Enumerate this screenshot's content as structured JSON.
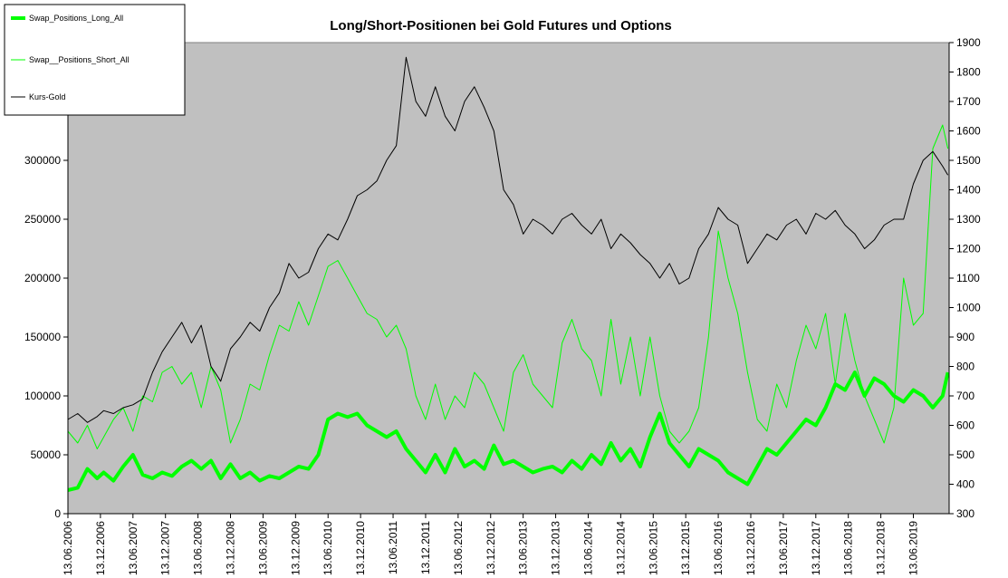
{
  "chart_data": {
    "type": "line",
    "title": "Long/Short-Positionen bei Gold Futures und Options",
    "xlabel": "",
    "ylabel": "",
    "ylabel_right": "",
    "x_tick_labels": [
      "13.06.2006",
      "13.12.2006",
      "13.06.2007",
      "13.12.2007",
      "13.06.2008",
      "13.12.2008",
      "13.06.2009",
      "13.12.2009",
      "13.06.2010",
      "13.12.2010",
      "13.06.2011",
      "13.12.2011",
      "13.06.2012",
      "13.12.2012",
      "13.06.2013",
      "13.12.2013",
      "13.06.2014",
      "13.12.2014",
      "13.06.2015",
      "13.12.2015",
      "13.06.2016",
      "13.12.2016",
      "13.06.2017",
      "13.12.2017",
      "13.06.2018",
      "13.12.2018",
      "13.06.2019"
    ],
    "xlim": [
      2006.45,
      2020.0
    ],
    "ylim_left": [
      0,
      400000
    ],
    "yticks_left": [
      0,
      50000,
      100000,
      150000,
      200000,
      250000,
      300000
    ],
    "ytick_labels_left": [
      "0",
      "50000",
      "100000",
      "150000",
      "200000",
      "250000",
      "300000"
    ],
    "ylim_right": [
      300,
      1900
    ],
    "yticks_right": [
      300,
      400,
      500,
      600,
      700,
      800,
      900,
      1000,
      1100,
      1200,
      1300,
      1400,
      1500,
      1600,
      1700,
      1800,
      1900
    ],
    "legend_position": "top-left (outside plot)",
    "background_color": "#c0c0c0",
    "grid": false,
    "series": [
      {
        "name": "Swap_Positions_Long_All",
        "axis": "left",
        "color": "#00ff00",
        "width": 4,
        "x": [
          2006.45,
          2006.6,
          2006.75,
          2006.9,
          2007.0,
          2007.15,
          2007.3,
          2007.45,
          2007.6,
          2007.75,
          2007.9,
          2008.05,
          2008.2,
          2008.35,
          2008.5,
          2008.65,
          2008.8,
          2008.95,
          2009.1,
          2009.25,
          2009.4,
          2009.55,
          2009.7,
          2009.85,
          2010.0,
          2010.15,
          2010.3,
          2010.45,
          2010.6,
          2010.75,
          2010.9,
          2011.05,
          2011.2,
          2011.35,
          2011.5,
          2011.65,
          2011.8,
          2011.95,
          2012.1,
          2012.25,
          2012.4,
          2012.55,
          2012.7,
          2012.85,
          2013.0,
          2013.15,
          2013.3,
          2013.45,
          2013.6,
          2013.75,
          2013.9,
          2014.05,
          2014.2,
          2014.35,
          2014.5,
          2014.65,
          2014.8,
          2014.95,
          2015.1,
          2015.25,
          2015.4,
          2015.55,
          2015.7,
          2015.85,
          2016.0,
          2016.15,
          2016.3,
          2016.45,
          2016.6,
          2016.75,
          2016.9,
          2017.05,
          2017.2,
          2017.35,
          2017.5,
          2017.65,
          2017.8,
          2017.95,
          2018.1,
          2018.25,
          2018.4,
          2018.55,
          2018.7,
          2018.85,
          2019.0,
          2019.15,
          2019.3,
          2019.45,
          2019.6,
          2019.75,
          2019.9,
          2019.98
        ],
        "values": [
          20000,
          22000,
          38000,
          30000,
          35000,
          28000,
          40000,
          50000,
          33000,
          30000,
          35000,
          32000,
          40000,
          45000,
          38000,
          45000,
          30000,
          42000,
          30000,
          35000,
          28000,
          32000,
          30000,
          35000,
          40000,
          38000,
          50000,
          80000,
          85000,
          82000,
          85000,
          75000,
          70000,
          65000,
          70000,
          55000,
          45000,
          35000,
          50000,
          35000,
          55000,
          40000,
          45000,
          38000,
          58000,
          42000,
          45000,
          40000,
          35000,
          38000,
          40000,
          35000,
          45000,
          38000,
          50000,
          42000,
          60000,
          45000,
          55000,
          40000,
          65000,
          85000,
          60000,
          50000,
          40000,
          55000,
          50000,
          45000,
          35000,
          30000,
          25000,
          40000,
          55000,
          50000,
          60000,
          70000,
          80000,
          75000,
          90000,
          110000,
          105000,
          120000,
          100000,
          115000,
          110000,
          100000,
          95000,
          105000,
          100000,
          90000,
          100000,
          120000
        ]
      },
      {
        "name": "Swap__Positions_Short_All",
        "axis": "left",
        "color": "#00ff00",
        "width": 1,
        "x": [
          2006.45,
          2006.6,
          2006.75,
          2006.9,
          2007.0,
          2007.15,
          2007.3,
          2007.45,
          2007.6,
          2007.75,
          2007.9,
          2008.05,
          2008.2,
          2008.35,
          2008.5,
          2008.65,
          2008.8,
          2008.95,
          2009.1,
          2009.25,
          2009.4,
          2009.55,
          2009.7,
          2009.85,
          2010.0,
          2010.15,
          2010.3,
          2010.45,
          2010.6,
          2010.75,
          2010.9,
          2011.05,
          2011.2,
          2011.35,
          2011.5,
          2011.65,
          2011.8,
          2011.95,
          2012.1,
          2012.25,
          2012.4,
          2012.55,
          2012.7,
          2012.85,
          2013.0,
          2013.15,
          2013.3,
          2013.45,
          2013.6,
          2013.75,
          2013.9,
          2014.05,
          2014.2,
          2014.35,
          2014.5,
          2014.65,
          2014.8,
          2014.95,
          2015.1,
          2015.25,
          2015.4,
          2015.55,
          2015.7,
          2015.85,
          2016.0,
          2016.15,
          2016.3,
          2016.45,
          2016.6,
          2016.75,
          2016.9,
          2017.05,
          2017.2,
          2017.35,
          2017.5,
          2017.65,
          2017.8,
          2017.95,
          2018.1,
          2018.25,
          2018.4,
          2018.55,
          2018.7,
          2018.85,
          2019.0,
          2019.15,
          2019.3,
          2019.45,
          2019.6,
          2019.75,
          2019.9,
          2019.98
        ],
        "values": [
          70000,
          60000,
          75000,
          55000,
          65000,
          80000,
          90000,
          70000,
          100000,
          95000,
          120000,
          125000,
          110000,
          120000,
          90000,
          125000,
          105000,
          60000,
          80000,
          110000,
          105000,
          135000,
          160000,
          155000,
          180000,
          160000,
          185000,
          210000,
          215000,
          200000,
          185000,
          170000,
          165000,
          150000,
          160000,
          140000,
          100000,
          80000,
          110000,
          80000,
          100000,
          90000,
          120000,
          110000,
          90000,
          70000,
          120000,
          135000,
          110000,
          100000,
          90000,
          145000,
          165000,
          140000,
          130000,
          100000,
          165000,
          110000,
          150000,
          100000,
          150000,
          100000,
          70000,
          60000,
          70000,
          90000,
          150000,
          240000,
          200000,
          170000,
          120000,
          80000,
          70000,
          110000,
          90000,
          130000,
          160000,
          140000,
          170000,
          110000,
          170000,
          130000,
          100000,
          80000,
          60000,
          90000,
          200000,
          160000,
          170000,
          310000,
          330000,
          310000
        ]
      },
      {
        "name": "Kurs-Gold",
        "axis": "right",
        "color": "#000000",
        "width": 1,
        "x": [
          2006.45,
          2006.6,
          2006.75,
          2006.9,
          2007.0,
          2007.15,
          2007.3,
          2007.45,
          2007.6,
          2007.75,
          2007.9,
          2008.05,
          2008.2,
          2008.35,
          2008.5,
          2008.65,
          2008.8,
          2008.95,
          2009.1,
          2009.25,
          2009.4,
          2009.55,
          2009.7,
          2009.85,
          2010.0,
          2010.15,
          2010.3,
          2010.45,
          2010.6,
          2010.75,
          2010.9,
          2011.05,
          2011.2,
          2011.35,
          2011.5,
          2011.65,
          2011.8,
          2011.95,
          2012.1,
          2012.25,
          2012.4,
          2012.55,
          2012.7,
          2012.85,
          2013.0,
          2013.15,
          2013.3,
          2013.45,
          2013.6,
          2013.75,
          2013.9,
          2014.05,
          2014.2,
          2014.35,
          2014.5,
          2014.65,
          2014.8,
          2014.95,
          2015.1,
          2015.25,
          2015.4,
          2015.55,
          2015.7,
          2015.85,
          2016.0,
          2016.15,
          2016.3,
          2016.45,
          2016.6,
          2016.75,
          2016.9,
          2017.05,
          2017.2,
          2017.35,
          2017.5,
          2017.65,
          2017.8,
          2017.95,
          2018.1,
          2018.25,
          2018.4,
          2018.55,
          2018.7,
          2018.85,
          2019.0,
          2019.15,
          2019.3,
          2019.45,
          2019.6,
          2019.75,
          2019.9,
          2019.98
        ],
        "values": [
          620,
          640,
          610,
          630,
          650,
          640,
          660,
          670,
          690,
          780,
          850,
          900,
          950,
          880,
          940,
          800,
          750,
          860,
          900,
          950,
          920,
          1000,
          1050,
          1150,
          1100,
          1120,
          1200,
          1250,
          1230,
          1300,
          1380,
          1400,
          1430,
          1500,
          1550,
          1850,
          1700,
          1650,
          1750,
          1650,
          1600,
          1700,
          1750,
          1680,
          1600,
          1400,
          1350,
          1250,
          1300,
          1280,
          1250,
          1300,
          1320,
          1280,
          1250,
          1300,
          1200,
          1250,
          1220,
          1180,
          1150,
          1100,
          1150,
          1080,
          1100,
          1200,
          1250,
          1340,
          1300,
          1280,
          1150,
          1200,
          1250,
          1230,
          1280,
          1300,
          1250,
          1320,
          1300,
          1330,
          1280,
          1250,
          1200,
          1230,
          1280,
          1300,
          1300,
          1420,
          1500,
          1530,
          1480,
          1450
        ]
      }
    ]
  }
}
